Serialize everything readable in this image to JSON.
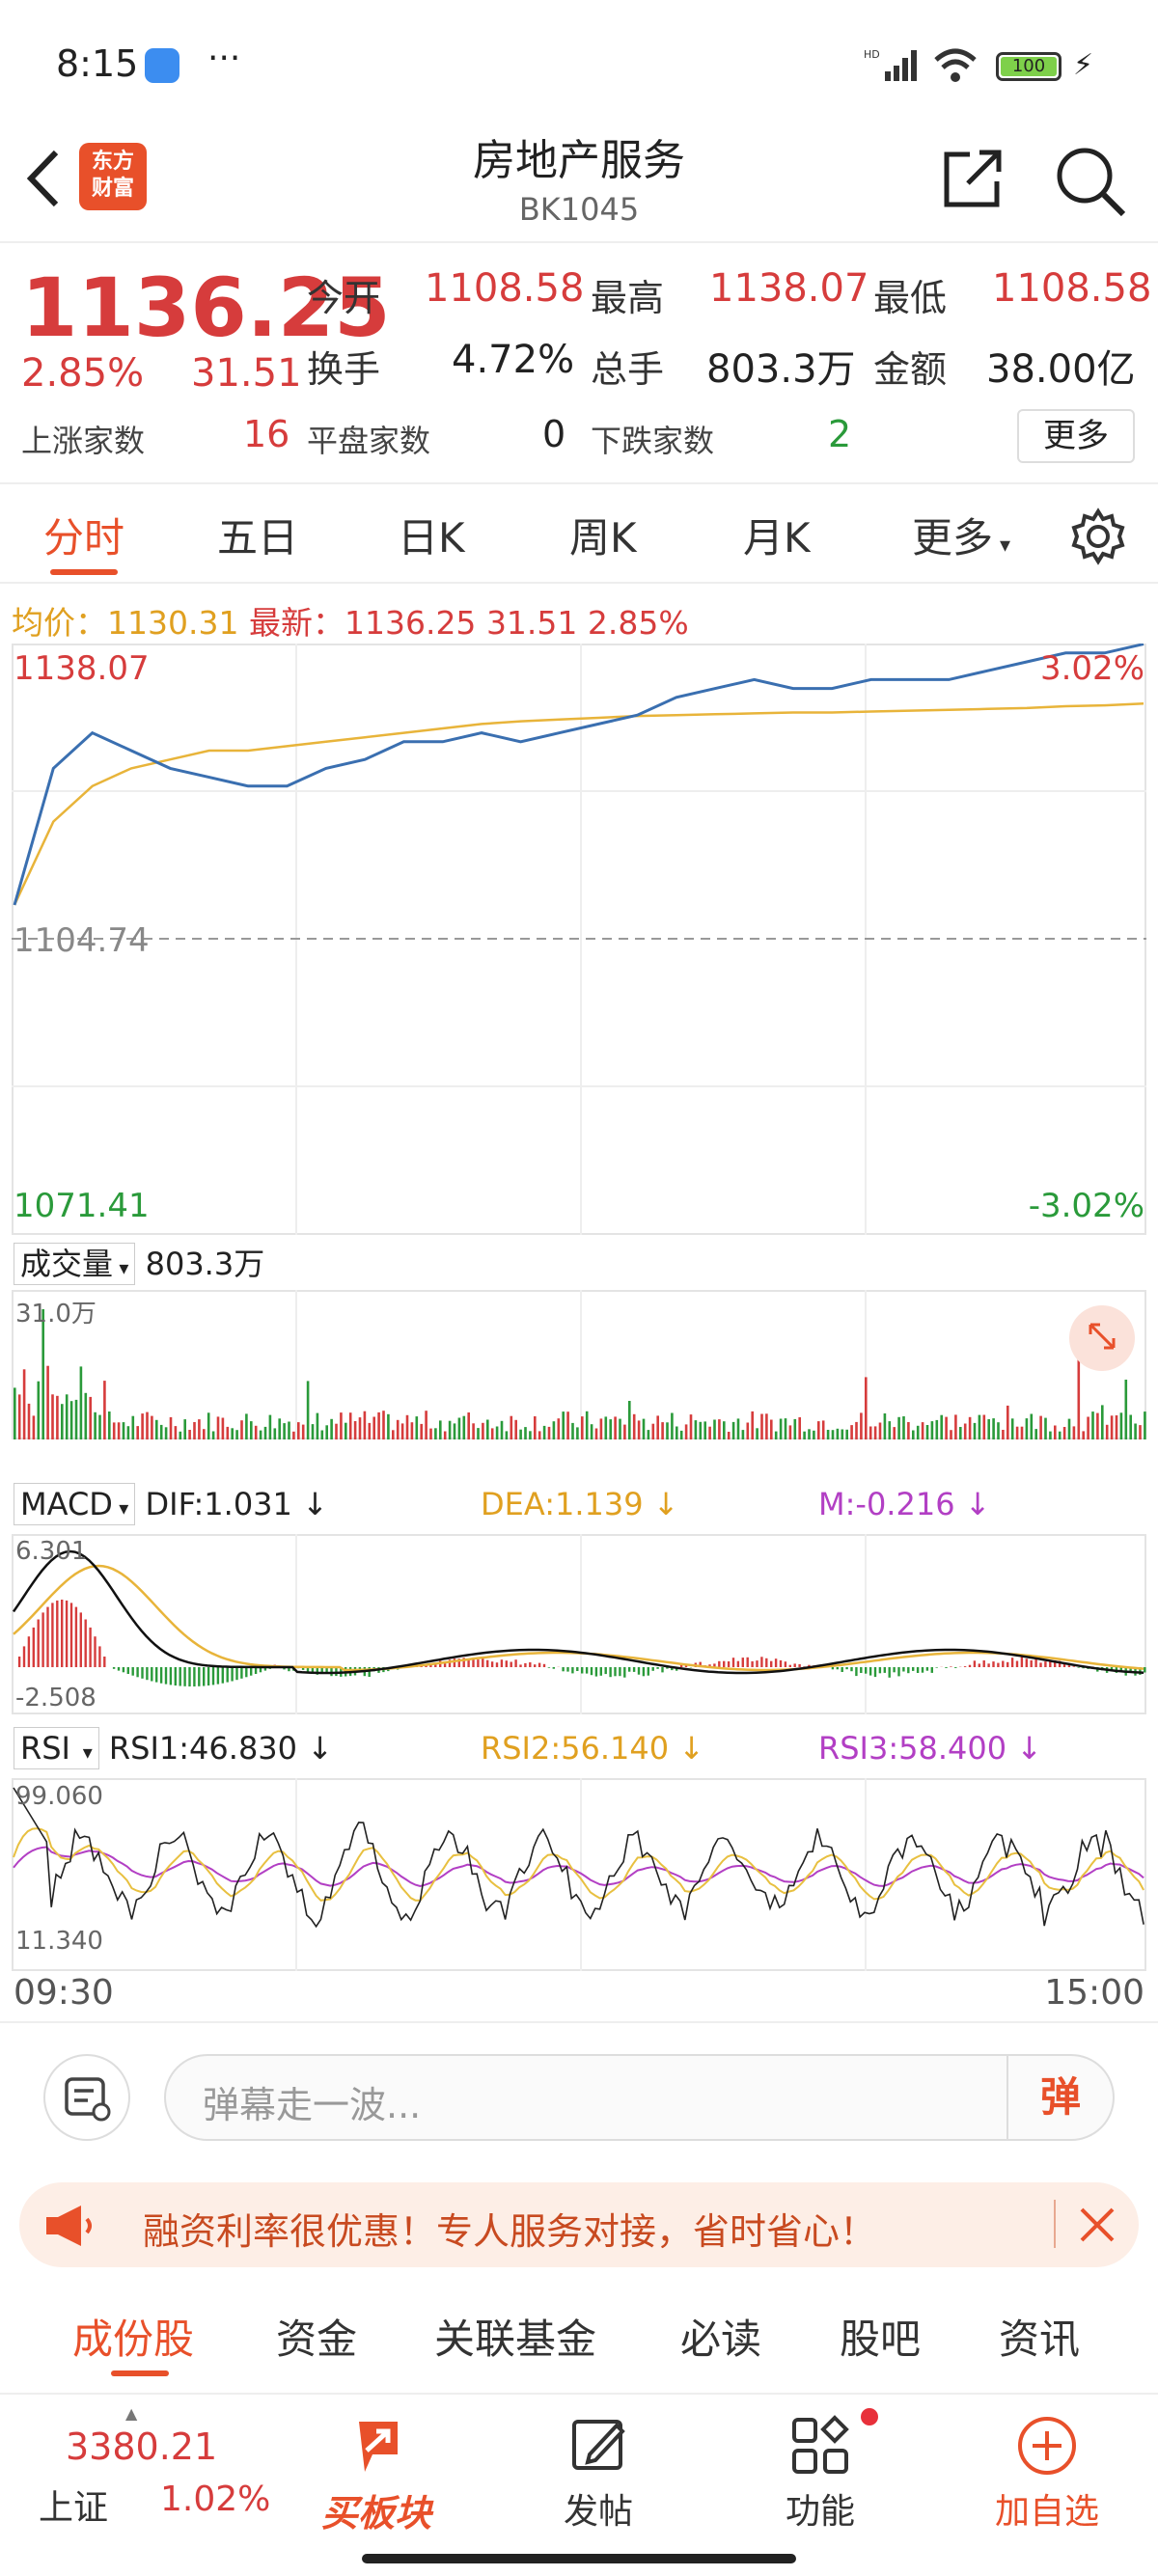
{
  "status": {
    "time": "8:15",
    "dots": "···",
    "signal": "HD",
    "battery": "100"
  },
  "header": {
    "logo_line1": "东方",
    "logo_line2": "财富",
    "title": "房地产服务",
    "code": "BK1045"
  },
  "quote": {
    "price": "1136.25",
    "pct": "2.85%",
    "change": "31.51",
    "open_label": "今开",
    "open": "1108.58",
    "high_label": "最高",
    "high": "1138.07",
    "low_label": "最低",
    "low": "1108.58",
    "turnover_label": "换手",
    "turnover": "4.72%",
    "volume_label": "总手",
    "volume": "803.3万",
    "amount_label": "金额",
    "amount": "38.00亿",
    "up_label": "上涨家数",
    "up": "16",
    "flat_label": "平盘家数",
    "flat": "0",
    "down_label": "下跌家数",
    "down": "2",
    "more": "更多"
  },
  "tabs": [
    "分时",
    "五日",
    "日K",
    "周K",
    "月K",
    "更多"
  ],
  "info_line": {
    "avg_label": "均价：",
    "avg": "1130.31",
    "latest_label": "最新：",
    "latest": "1136.25",
    "chg": "31.51",
    "pct": "2.85%"
  },
  "chart_labels": {
    "top": "1138.07",
    "top_pct": "3.02%",
    "mid": "1104.74",
    "bottom": "1071.41",
    "bottom_pct": "-3.02%",
    "vol_label": "成交量",
    "vol_value": "803.3万",
    "vol_max": "31.0万",
    "macd_label": "MACD",
    "dif": "DIF:1.031",
    "dea": "DEA:1.139",
    "m": "M:-0.216",
    "macd_top": "6.301",
    "macd_bottom": "-2.508",
    "rsi_label": "RSI",
    "rsi1": "RSI1:46.830",
    "rsi2": "RSI2:56.140",
    "rsi3": "RSI3:58.400",
    "rsi_top": "99.060",
    "rsi_bottom": "11.340",
    "time_start": "09:30",
    "time_end": "15:00"
  },
  "chart_data": {
    "type": "line",
    "ylim": [
      1071.41,
      1138.07
    ],
    "reference": 1104.74,
    "series": [
      {
        "values": [
          1108.6,
          1124,
          1128,
          1126,
          1124,
          1123,
          1122,
          1122,
          1124,
          1125,
          1127,
          1127,
          1128,
          1127,
          1128,
          1129,
          1130,
          1132,
          1133,
          1134,
          1133,
          1133,
          1134,
          1134,
          1134,
          1135,
          1136,
          1137,
          1137,
          1138
        ]
      },
      {
        "values": [
          1108.6,
          1118,
          1122,
          1124,
          1125,
          1126,
          1126,
          1126.5,
          1127,
          1127.5,
          1128,
          1128.5,
          1129,
          1129.3,
          1129.5,
          1129.7,
          1129.9,
          1130,
          1130.1,
          1130.2,
          1130.3,
          1130.3,
          1130.4,
          1130.5,
          1130.6,
          1130.7,
          1130.8,
          1131,
          1131.1,
          1131.3
        ]
      }
    ]
  },
  "danmu": {
    "placeholder": "弹幕走一波...",
    "btn": "弹"
  },
  "promo": {
    "text": "融资利率很优惠！专人服务对接，省时省心！"
  },
  "subtabs": [
    "成份股",
    "资金",
    "关联基金",
    "必读",
    "股吧",
    "资讯"
  ],
  "bottomnav": {
    "index_value": "3380.21",
    "index_name": "上证",
    "index_pct": "1.02%",
    "buy": "买板块",
    "post": "发帖",
    "func": "功能",
    "add": "加自选"
  }
}
